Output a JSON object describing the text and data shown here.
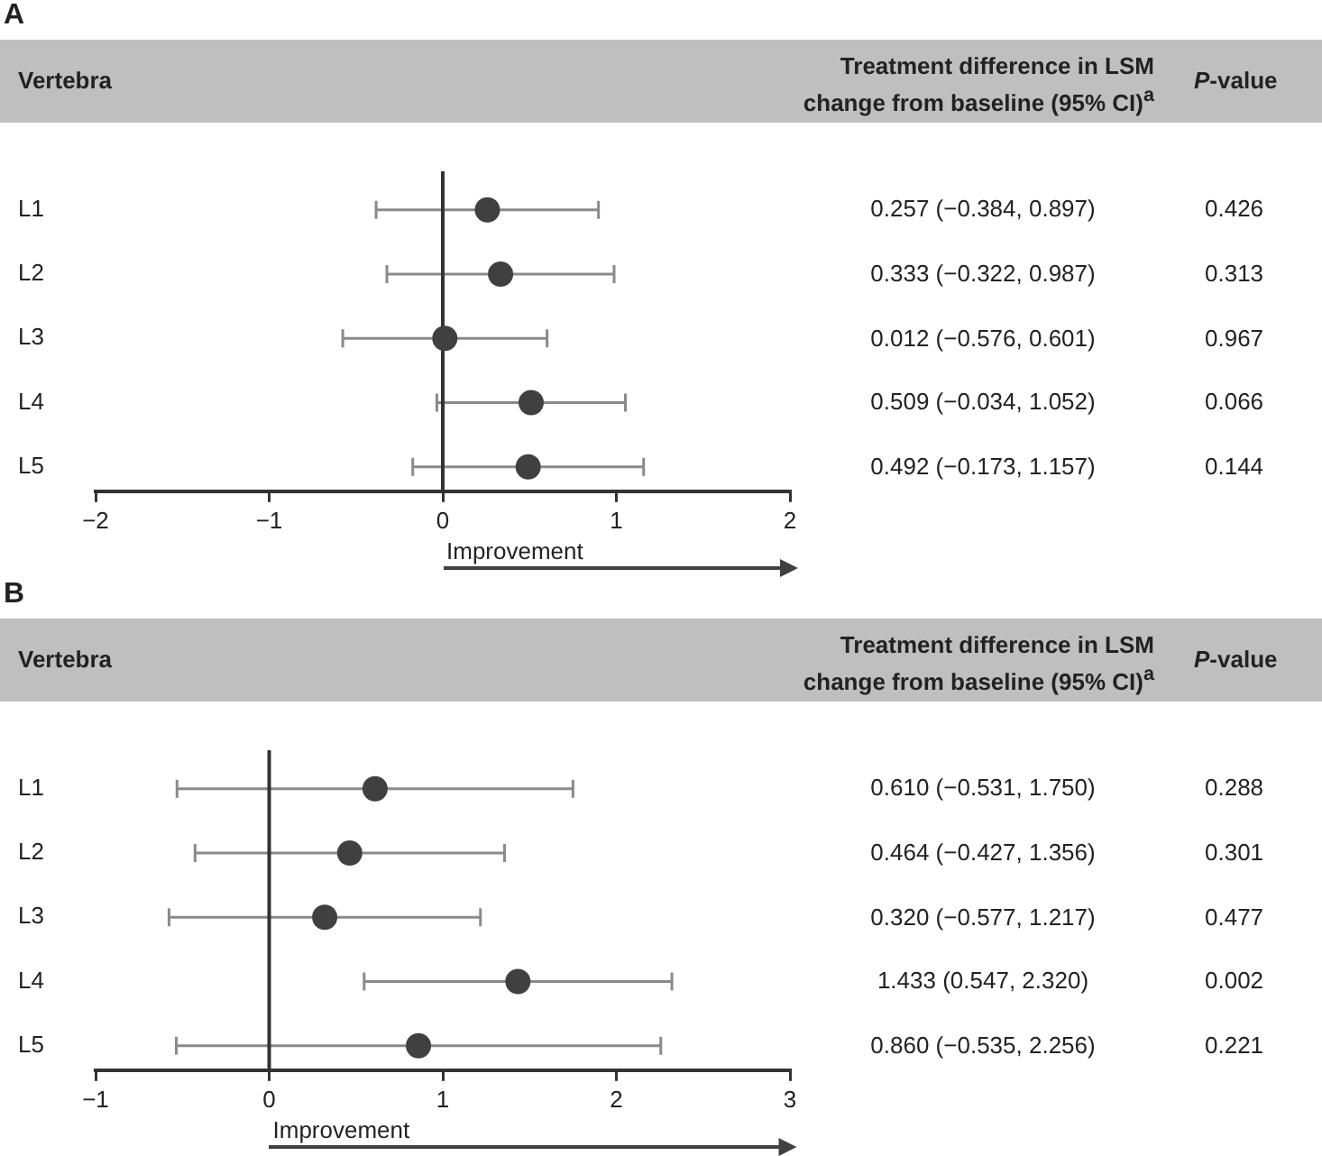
{
  "chart_data": [
    {
      "type": "scatter",
      "title": "A",
      "ylabel": "Vertebra",
      "orientation": "horizontal",
      "marker": "circle",
      "color": "#404040",
      "categories": [
        "L1",
        "L2",
        "L3",
        "L4",
        "L5"
      ],
      "values": [
        0.257,
        0.333,
        0.012,
        0.509,
        0.492
      ],
      "errors": [
        [
          -0.384,
          0.897
        ],
        [
          -0.322,
          0.987
        ],
        [
          -0.576,
          0.601
        ],
        [
          -0.034,
          1.052
        ],
        [
          -0.173,
          1.157
        ]
      ],
      "value_labels": [
        "0.257 (−0.384, 0.897)",
        "0.333 (−0.322, 0.987)",
        "0.012 (−0.576, 0.601)",
        "0.509 (−0.034, 1.052)",
        "0.492 (−0.173, 1.157)"
      ],
      "xlim": [
        -2,
        2
      ],
      "xticks": [
        -2,
        -1,
        0,
        1,
        2
      ],
      "ref_lines": [
        {
          "axis": "x",
          "value": 0,
          "color": "#333333"
        }
      ],
      "annotations": [
        "Treatment difference in LSM change from baseline (95% CI)$^{a}$",
        "P-value",
        "Improvement",
        "0.426",
        "0.313",
        "0.967",
        "0.066",
        "0.144"
      ]
    },
    {
      "type": "scatter",
      "title": "B",
      "ylabel": "Vertebra",
      "orientation": "horizontal",
      "marker": "circle",
      "color": "#404040",
      "categories": [
        "L1",
        "L2",
        "L3",
        "L4",
        "L5"
      ],
      "values": [
        0.61,
        0.464,
        0.32,
        1.433,
        0.86
      ],
      "errors": [
        [
          -0.531,
          1.75
        ],
        [
          -0.427,
          1.356
        ],
        [
          -0.577,
          1.217
        ],
        [
          0.547,
          2.32
        ],
        [
          -0.535,
          2.256
        ]
      ],
      "value_labels": [
        "0.610 (−0.531, 1.750)",
        "0.464 (−0.427, 1.356)",
        "0.320 (−0.577, 1.217)",
        "1.433 (0.547, 2.320)",
        "0.860 (−0.535, 2.256)"
      ],
      "xlim": [
        -1,
        3
      ],
      "xticks": [
        -1,
        0,
        1,
        2,
        3
      ],
      "ref_lines": [
        {
          "axis": "x",
          "value": 0,
          "color": "#333333"
        }
      ],
      "annotations": [
        "Treatment difference in LSM change from baseline (95% CI)$^{a}$",
        "P-value",
        "Improvement",
        "0.288",
        "0.301",
        "0.477",
        "0.002",
        "0.221"
      ]
    }
  ]
}
